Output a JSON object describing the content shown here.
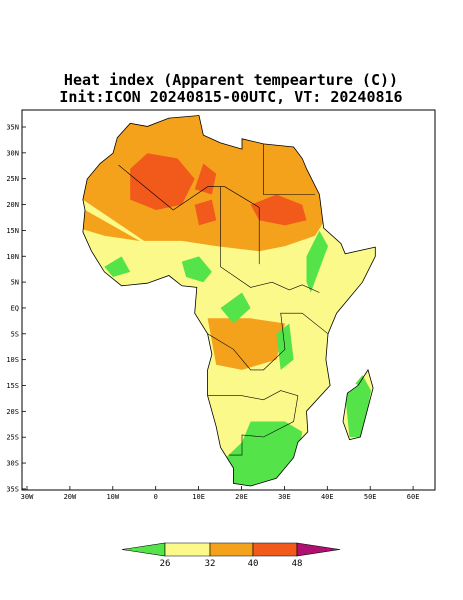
{
  "title": {
    "line1": "Heat index (Apparent tempearture (C))",
    "line2": "Init:ICON 20240815-00UTC, VT: 20240816"
  },
  "map": {
    "lat_labels": [
      "35N",
      "30N",
      "25N",
      "20N",
      "15N",
      "10N",
      "5N",
      "EQ",
      "5S",
      "10S",
      "15S",
      "20S",
      "25S",
      "30S",
      "35S"
    ],
    "lon_labels": [
      "30W",
      "20W",
      "10W",
      "0",
      "10E",
      "20E",
      "30E",
      "40E",
      "50E",
      "60E"
    ]
  },
  "colorbar": {
    "labels": [
      "26",
      "32",
      "40",
      "48"
    ],
    "colors": [
      "#55e34a",
      "#fbf98a",
      "#f4a21c",
      "#f25a1b",
      "#b01070"
    ]
  }
}
